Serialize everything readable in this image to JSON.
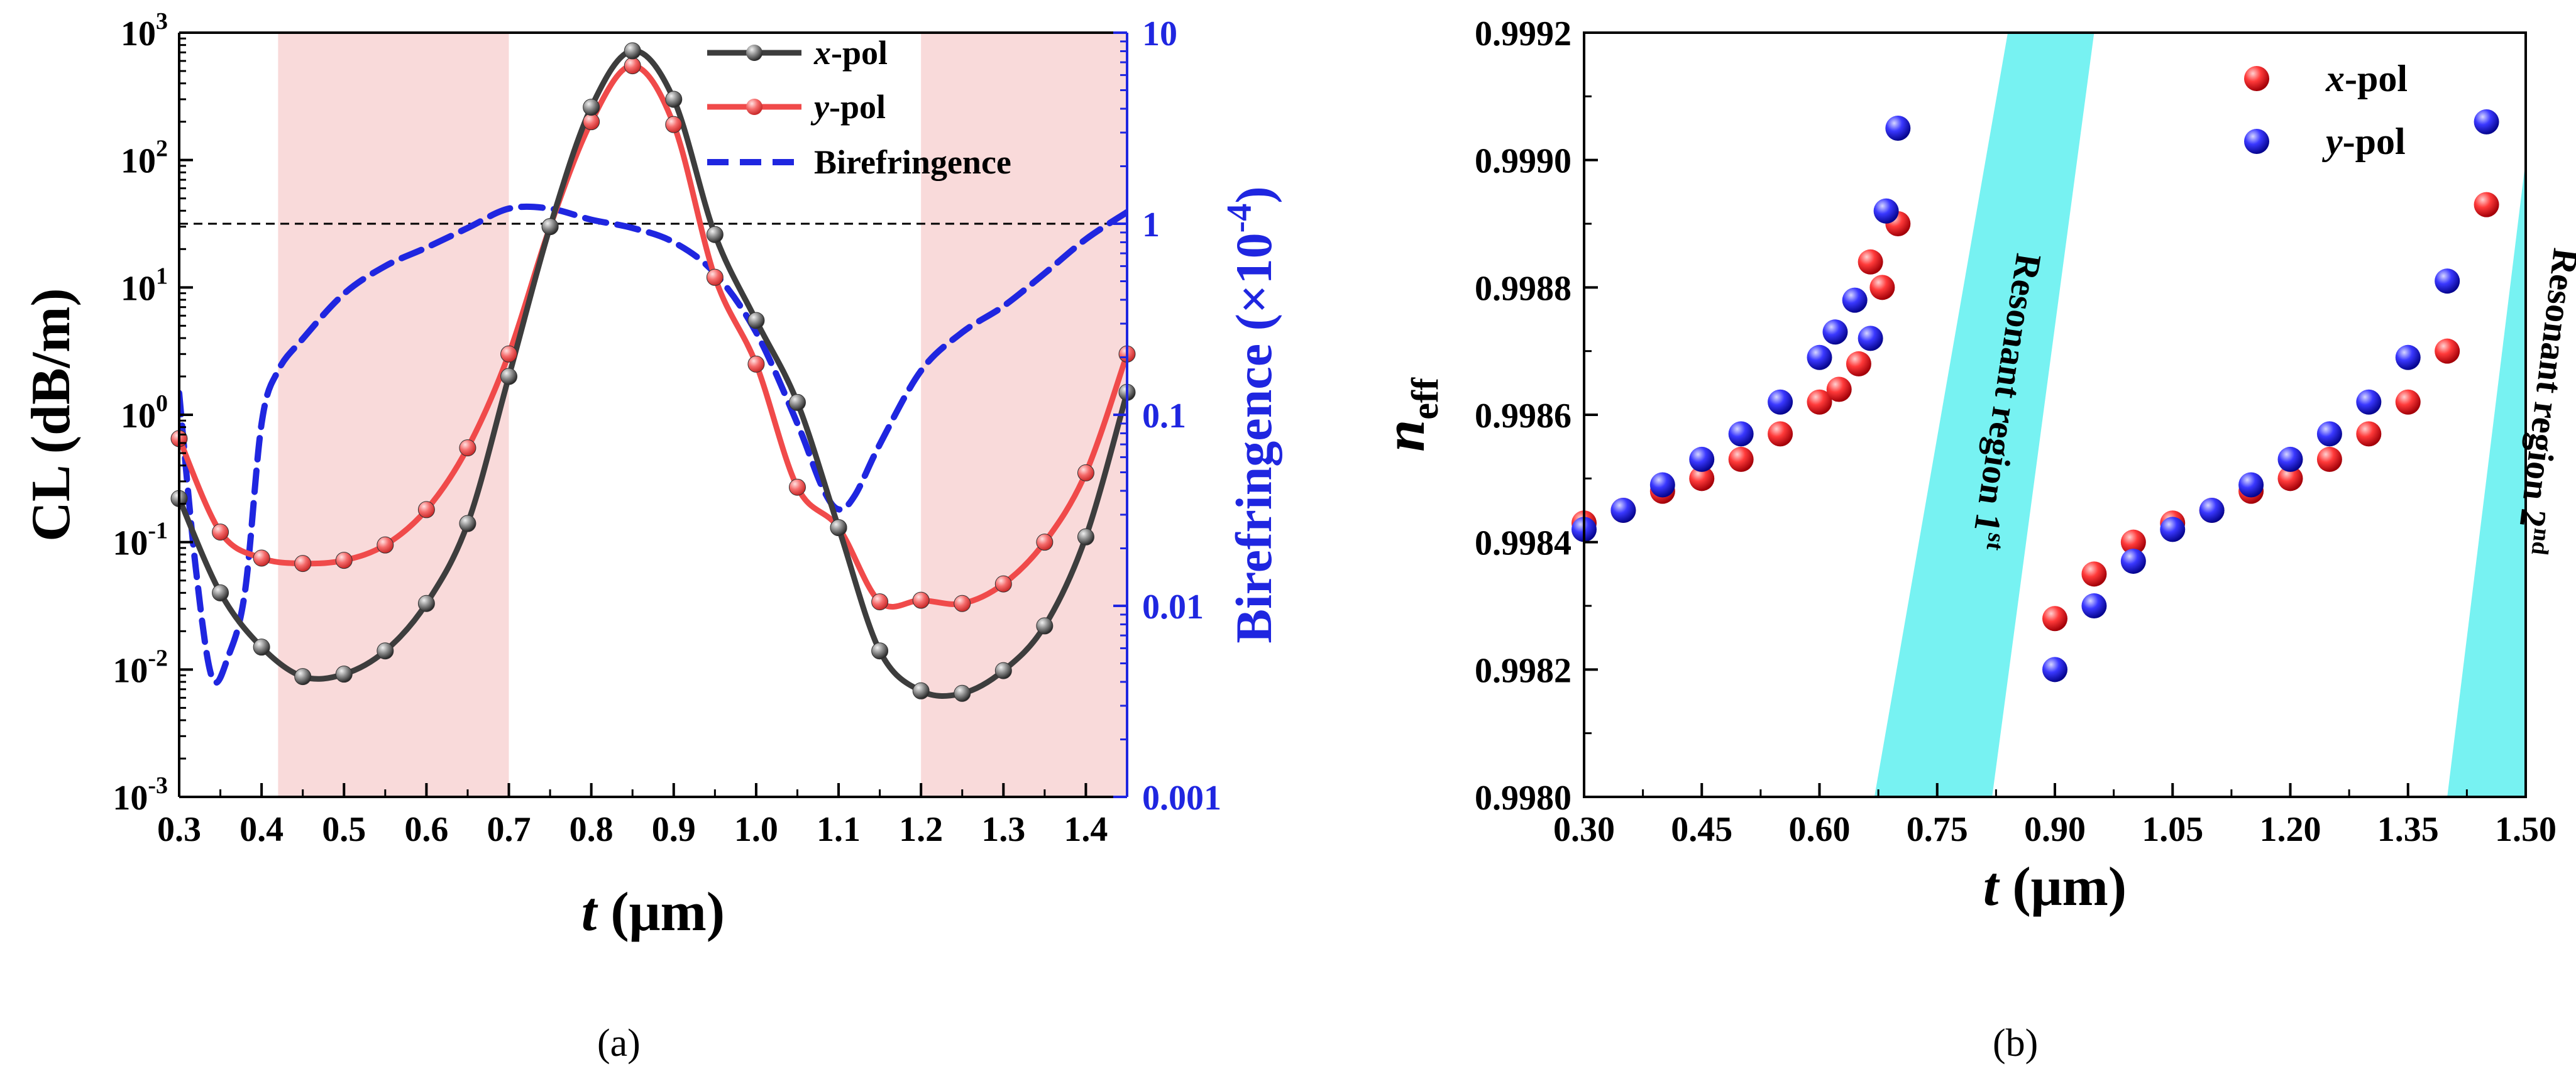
{
  "colors": {
    "xpol": "#3d3d3d",
    "xpol_marker": "#808080",
    "ypol": "#f04a4a",
    "ypol_marker": "#f26b6b",
    "birefringence": "#1f26e0",
    "right_axis": "#1f26e0",
    "shade_a": "#f9dada",
    "resonant_band": "#5ff0f0",
    "xpol_ball": "#e8111a",
    "ypol_ball": "#1a17e0"
  },
  "captions": {
    "a": "(a)",
    "b": "(b)"
  },
  "chart_data": [
    {
      "type": "line",
      "panel": "a",
      "title": "",
      "xlabel": "t (μm)",
      "xlabel_italic": "t",
      "xlabel_unit": " (μm)",
      "ylabel": "CL (dB/m)",
      "y2label": "Birefringence (×10",
      "y2label_exp": "-4",
      "y2label_end": ")",
      "xlim": [
        0.3,
        1.45
      ],
      "ylim_log": [
        0.001,
        1000
      ],
      "y2lim_log": [
        0.001,
        10
      ],
      "xticks": [
        "0.3",
        "0.4",
        "0.5",
        "0.6",
        "0.7",
        "0.8",
        "0.9",
        "1.0",
        "1.1",
        "1.2",
        "1.3",
        "1.4"
      ],
      "yticks": [
        {
          "base": "10",
          "exp": "-3"
        },
        {
          "base": "10",
          "exp": "-2"
        },
        {
          "base": "10",
          "exp": "-1"
        },
        {
          "base": "10",
          "exp": "0"
        },
        {
          "base": "10",
          "exp": "1"
        },
        {
          "base": "10",
          "exp": "2"
        },
        {
          "base": "10",
          "exp": "3"
        }
      ],
      "y2ticks": [
        "0.001",
        "0.01",
        "0.1",
        "1",
        "10"
      ],
      "shaded_regions": [
        [
          0.42,
          0.7
        ],
        [
          1.2,
          1.45
        ]
      ],
      "reference_line_y2": 1,
      "legend": {
        "placement": "top-right",
        "entries": [
          {
            "italic": "x",
            "rest": "-pol",
            "series": "x-pol"
          },
          {
            "italic": "y",
            "rest": "-pol",
            "series": "y-pol"
          },
          {
            "italic": "",
            "rest": "Birefringence",
            "series": "Birefringence"
          }
        ]
      },
      "series": [
        {
          "name": "x-pol",
          "x": [
            0.3,
            0.35,
            0.4,
            0.45,
            0.5,
            0.55,
            0.6,
            0.65,
            0.7,
            0.75,
            0.8,
            0.85,
            0.9,
            0.95,
            1.0,
            1.05,
            1.1,
            1.15,
            1.2,
            1.25,
            1.3,
            1.35,
            1.4,
            1.45
          ],
          "values": [
            0.22,
            0.04,
            0.015,
            0.0088,
            0.0092,
            0.014,
            0.033,
            0.14,
            2.0,
            30,
            260,
            720,
            300,
            26,
            5.5,
            1.25,
            0.13,
            0.014,
            0.0068,
            0.0065,
            0.0098,
            0.022,
            0.11,
            1.5
          ]
        },
        {
          "name": "y-pol",
          "x": [
            0.3,
            0.35,
            0.4,
            0.45,
            0.5,
            0.55,
            0.6,
            0.65,
            0.7,
            0.75,
            0.8,
            0.85,
            0.9,
            0.95,
            1.0,
            1.05,
            1.1,
            1.15,
            1.2,
            1.25,
            1.3,
            1.35,
            1.4,
            1.45
          ],
          "values": [
            0.65,
            0.12,
            0.075,
            0.068,
            0.072,
            0.095,
            0.18,
            0.55,
            3.0,
            30,
            200,
            550,
            190,
            12,
            2.5,
            0.27,
            0.13,
            0.034,
            0.035,
            0.033,
            0.047,
            0.1,
            0.35,
            3.0
          ]
        },
        {
          "name": "Birefringence",
          "axis": "right",
          "style": "dashed",
          "x": [
            0.3,
            0.32,
            0.34,
            0.36,
            0.38,
            0.4,
            0.42,
            0.45,
            0.5,
            0.55,
            0.6,
            0.65,
            0.7,
            0.75,
            0.8,
            0.85,
            0.9,
            0.95,
            1.0,
            1.05,
            1.08,
            1.1,
            1.12,
            1.15,
            1.2,
            1.25,
            1.3,
            1.35,
            1.4,
            1.45
          ],
          "values": [
            0.13,
            0.016,
            0.0042,
            0.0055,
            0.012,
            0.09,
            0.17,
            0.25,
            0.43,
            0.6,
            0.75,
            0.95,
            1.2,
            1.2,
            1.05,
            0.95,
            0.8,
            0.55,
            0.27,
            0.09,
            0.042,
            0.032,
            0.038,
            0.07,
            0.17,
            0.27,
            0.37,
            0.55,
            0.83,
            1.15
          ]
        }
      ]
    },
    {
      "type": "scatter",
      "panel": "b",
      "title": "",
      "xlabel": "t (μm)",
      "xlabel_italic": "t",
      "xlabel_unit": " (μm)",
      "ylabel_main": "n",
      "ylabel_sub": "eff",
      "xlim": [
        0.3,
        1.5
      ],
      "ylim": [
        0.998,
        0.9992
      ],
      "xticks": [
        "0.30",
        "0.45",
        "0.60",
        "0.75",
        "0.90",
        "1.05",
        "1.20",
        "1.35",
        "1.50"
      ],
      "yticks": [
        "0.9980",
        "0.9982",
        "0.9984",
        "0.9986",
        "0.9988",
        "0.9990",
        "0.9992"
      ],
      "legend": {
        "placement": "top-right",
        "entries": [
          {
            "italic": "x",
            "rest": "-pol",
            "series": "x-pol"
          },
          {
            "italic": "y",
            "rest": "-pol",
            "series": "y-pol"
          }
        ]
      },
      "resonant_regions": [
        {
          "label": "Resonant region 1",
          "sup": "st",
          "bottom_x": [
            0.67,
            0.82
          ],
          "top_x": [
            0.84,
            0.95
          ]
        },
        {
          "label": "Resonant region 2",
          "sup": "nd",
          "bottom_x": [
            1.4,
            1.5
          ],
          "top_x": [
            1.52,
            1.62
          ]
        }
      ],
      "series": [
        {
          "name": "x-pol",
          "x": [
            0.3,
            0.35,
            0.4,
            0.45,
            0.5,
            0.55,
            0.6,
            0.625,
            0.65,
            0.665,
            0.68,
            0.7,
            0.9,
            0.95,
            1.0,
            1.05,
            1.1,
            1.15,
            1.2,
            1.25,
            1.3,
            1.35,
            1.4,
            1.45
          ],
          "values": [
            0.99843,
            0.99845,
            0.99848,
            0.9985,
            0.99853,
            0.99857,
            0.99862,
            0.99864,
            0.99868,
            0.99884,
            0.9988,
            0.9989,
            0.99828,
            0.99835,
            0.9984,
            0.99843,
            0.99845,
            0.99848,
            0.9985,
            0.99853,
            0.99857,
            0.99862,
            0.9987,
            0.99893
          ]
        },
        {
          "name": "y-pol",
          "x": [
            0.3,
            0.35,
            0.4,
            0.45,
            0.5,
            0.55,
            0.6,
            0.62,
            0.645,
            0.665,
            0.685,
            0.7,
            0.9,
            0.95,
            1.0,
            1.05,
            1.1,
            1.15,
            1.2,
            1.25,
            1.3,
            1.35,
            1.4,
            1.45
          ],
          "values": [
            0.99842,
            0.99845,
            0.99849,
            0.99853,
            0.99857,
            0.99862,
            0.99869,
            0.99873,
            0.99878,
            0.99872,
            0.99892,
            0.99905,
            0.9982,
            0.9983,
            0.99837,
            0.99842,
            0.99845,
            0.99849,
            0.99853,
            0.99857,
            0.99862,
            0.99869,
            0.99881,
            0.99906
          ]
        }
      ]
    }
  ]
}
